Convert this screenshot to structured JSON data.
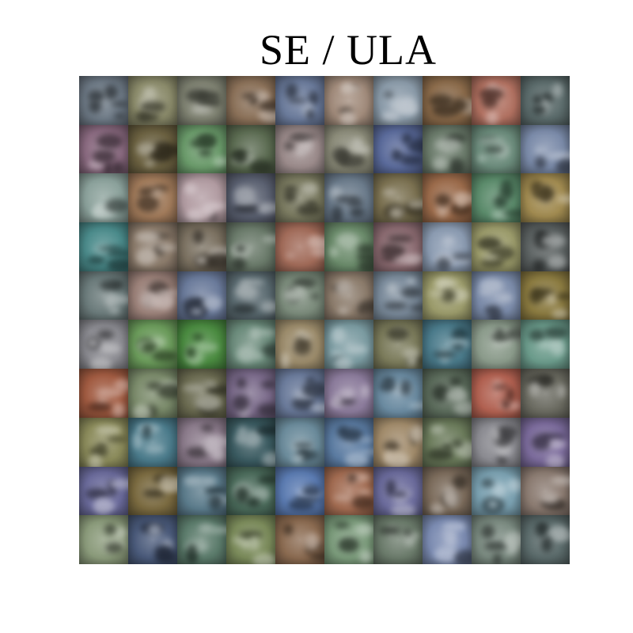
{
  "title": "SE / ULA",
  "grid": {
    "rows": 10,
    "cols": 10,
    "tiles": [
      [
        "#6e7a86",
        "#8a8a6a",
        "#7d8070",
        "#8a7058",
        "#6a7a9a",
        "#a08a7a",
        "#8a9aa8",
        "#8a6a4a",
        "#b07060",
        "#5a6a6a"
      ],
      [
        "#8a6a80",
        "#6a6040",
        "#6a9a6a",
        "#5a6a50",
        "#9a8a8a",
        "#8a8a78",
        "#5a6a9a",
        "#6a7a6a",
        "#6a8a7a",
        "#7a8aa8"
      ],
      [
        "#8aa09a",
        "#a07a5a",
        "#b09aa0",
        "#5a6070",
        "#7a7a60",
        "#6a7a8a",
        "#7a7050",
        "#9a6a4a",
        "#5a8a6a",
        "#a08a50"
      ],
      [
        "#4a8a8a",
        "#8a7a6a",
        "#7a7060",
        "#6a7a6a",
        "#a06a58",
        "#6a8a6a",
        "#8a6a70",
        "#8a9ab0",
        "#9a9a6a",
        "#5a6060"
      ],
      [
        "#6a7a7a",
        "#9a8078",
        "#6a7a9a",
        "#5a6a70",
        "#7a8a7a",
        "#8a7a6a",
        "#7a8a9a",
        "#9a9a6a",
        "#7a8aa8",
        "#8a7a40"
      ],
      [
        "#8a8a90",
        "#6a9a5a",
        "#4a8a40",
        "#6a8a7a",
        "#9a8a6a",
        "#7a9aa0",
        "#7a7a5a",
        "#4a7a8a",
        "#8a9a8a",
        "#6a9a8a"
      ],
      [
        "#a05a40",
        "#7a8a6a",
        "#6a6a50",
        "#7a6a8a",
        "#6a7a9a",
        "#8a7a9a",
        "#6a8aa0",
        "#5a6a5a",
        "#b06050",
        "#6a6a60"
      ],
      [
        "#8a8a5a",
        "#4a7a8a",
        "#8a7a8a",
        "#3a5a60",
        "#6a8a9a",
        "#5a7aa0",
        "#a08a6a",
        "#6a7a5a",
        "#8a8a90",
        "#7a6a9a"
      ],
      [
        "#6a6a9a",
        "#7a6a40",
        "#5a7a8a",
        "#4a6a5a",
        "#5a7ab0",
        "#a06a50",
        "#6a6a9a",
        "#7a6a5a",
        "#7aa0b0",
        "#8a7a70"
      ],
      [
        "#8a9a7a",
        "#4a5a7a",
        "#5a7a6a",
        "#7a8a5a",
        "#8a6a50",
        "#7a9a7a",
        "#6a7a6a",
        "#7a8ab0",
        "#7a8a80",
        "#5a6a6a"
      ]
    ]
  }
}
